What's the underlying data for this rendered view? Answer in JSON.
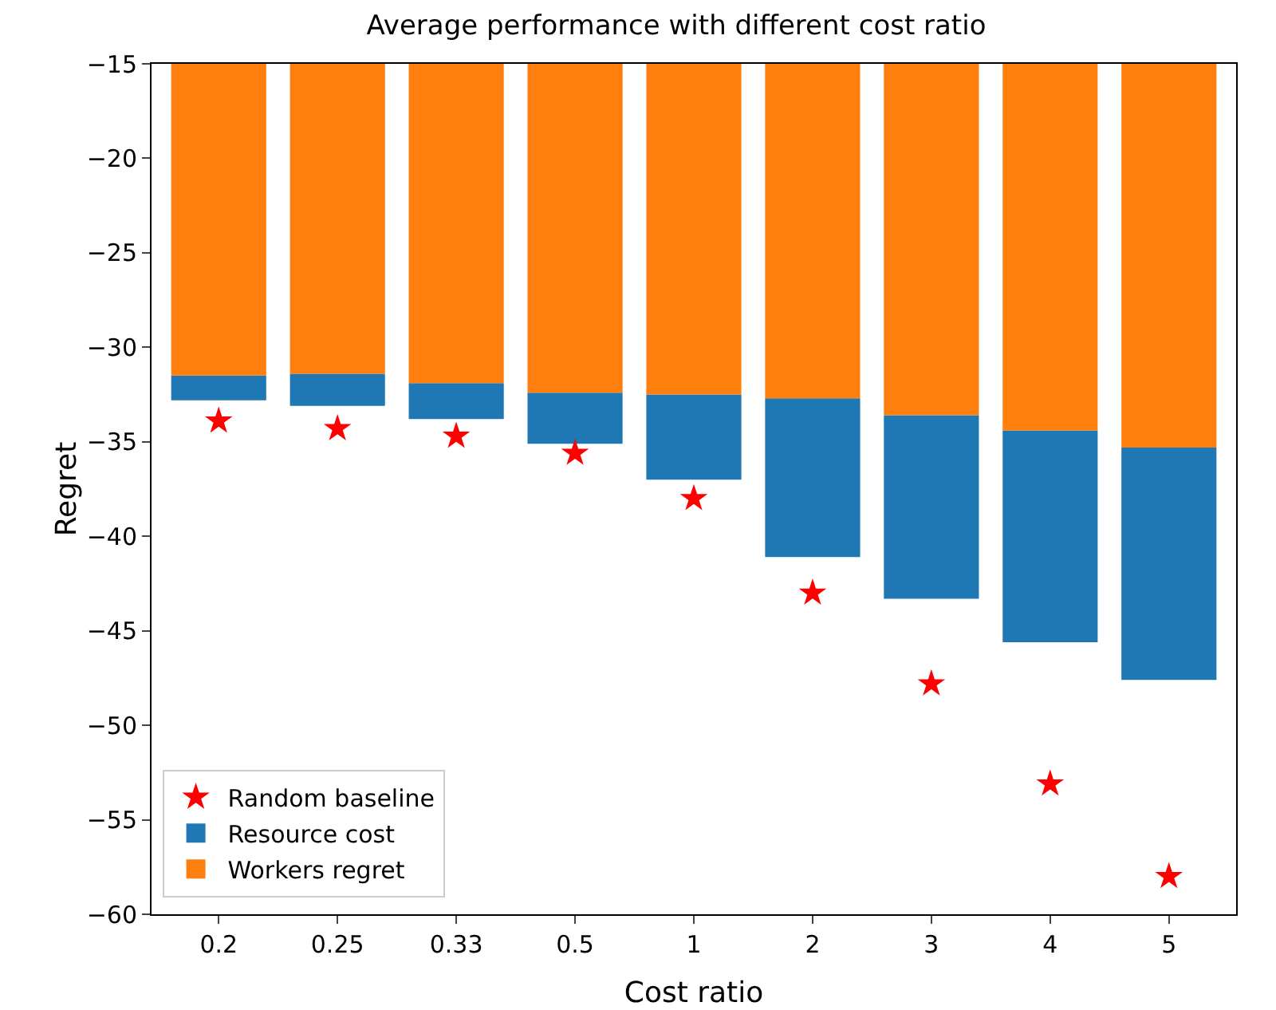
{
  "chart_data": {
    "type": "bar",
    "title": "Average performance with different cost ratio",
    "xlabel": "Cost ratio",
    "ylabel": "Regret",
    "categories": [
      "0.2",
      "0.25",
      "0.33",
      "0.5",
      "1",
      "2",
      "3",
      "4",
      "5"
    ],
    "series": [
      {
        "name": "Resource cost",
        "color": "#1f77b4",
        "base": [
          -31.5,
          -31.4,
          -31.9,
          -32.4,
          -32.5,
          -32.7,
          -33.6,
          -34.4,
          -35.3
        ],
        "values": [
          -1.3,
          -1.7,
          -1.9,
          -2.7,
          -4.5,
          -8.4,
          -9.7,
          -11.2,
          -12.3
        ]
      },
      {
        "name": "Workers regret",
        "color": "#ff7f0e",
        "values": [
          -31.5,
          -31.4,
          -31.9,
          -32.4,
          -32.5,
          -32.7,
          -33.6,
          -34.4,
          -35.3
        ]
      },
      {
        "name": "Random baseline",
        "type": "scatter",
        "color": "#ff0000",
        "marker": "star",
        "x": [
          "0.2",
          "0.25",
          "0.33",
          "0.5",
          "1",
          "2",
          "3",
          "4",
          "5"
        ],
        "values": [
          -33.9,
          -34.3,
          -34.7,
          -35.6,
          -38.0,
          -43.0,
          -47.8,
          -53.1,
          -58.0
        ]
      }
    ],
    "ylim": [
      -60,
      -15
    ],
    "yticks": [
      -60,
      -55,
      -50,
      -45,
      -40,
      -35,
      -30,
      -25,
      -20,
      -15
    ],
    "grid": false,
    "legend": "bottom left"
  }
}
